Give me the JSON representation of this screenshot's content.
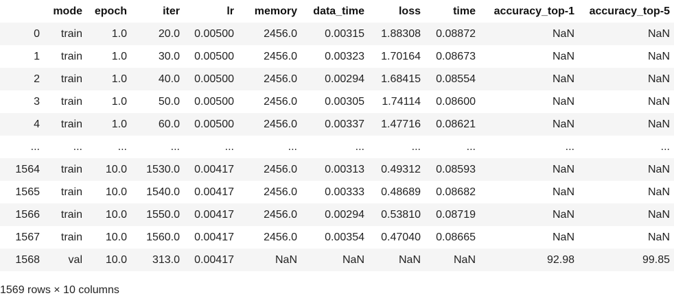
{
  "table": {
    "index_header": "",
    "columns": [
      "mode",
      "epoch",
      "iter",
      "lr",
      "memory",
      "data_time",
      "loss",
      "time",
      "accuracy_top-1",
      "accuracy_top-5"
    ],
    "rows": [
      {
        "index": "0",
        "cells": [
          "train",
          "1.0",
          "20.0",
          "0.00500",
          "2456.0",
          "0.00315",
          "1.88308",
          "0.08872",
          "NaN",
          "NaN"
        ]
      },
      {
        "index": "1",
        "cells": [
          "train",
          "1.0",
          "30.0",
          "0.00500",
          "2456.0",
          "0.00323",
          "1.70164",
          "0.08673",
          "NaN",
          "NaN"
        ]
      },
      {
        "index": "2",
        "cells": [
          "train",
          "1.0",
          "40.0",
          "0.00500",
          "2456.0",
          "0.00294",
          "1.68415",
          "0.08554",
          "NaN",
          "NaN"
        ]
      },
      {
        "index": "3",
        "cells": [
          "train",
          "1.0",
          "50.0",
          "0.00500",
          "2456.0",
          "0.00305",
          "1.74114",
          "0.08600",
          "NaN",
          "NaN"
        ]
      },
      {
        "index": "4",
        "cells": [
          "train",
          "1.0",
          "60.0",
          "0.00500",
          "2456.0",
          "0.00337",
          "1.47716",
          "0.08621",
          "NaN",
          "NaN"
        ]
      },
      {
        "index": "...",
        "cells": [
          "...",
          "...",
          "...",
          "...",
          "...",
          "...",
          "...",
          "...",
          "...",
          "..."
        ]
      },
      {
        "index": "1564",
        "cells": [
          "train",
          "10.0",
          "1530.0",
          "0.00417",
          "2456.0",
          "0.00313",
          "0.49312",
          "0.08593",
          "NaN",
          "NaN"
        ]
      },
      {
        "index": "1565",
        "cells": [
          "train",
          "10.0",
          "1540.0",
          "0.00417",
          "2456.0",
          "0.00333",
          "0.48689",
          "0.08682",
          "NaN",
          "NaN"
        ]
      },
      {
        "index": "1566",
        "cells": [
          "train",
          "10.0",
          "1550.0",
          "0.00417",
          "2456.0",
          "0.00294",
          "0.53810",
          "0.08719",
          "NaN",
          "NaN"
        ]
      },
      {
        "index": "1567",
        "cells": [
          "train",
          "10.0",
          "1560.0",
          "0.00417",
          "2456.0",
          "0.00354",
          "0.47040",
          "0.08665",
          "NaN",
          "NaN"
        ]
      },
      {
        "index": "1568",
        "cells": [
          "val",
          "10.0",
          "313.0",
          "0.00417",
          "NaN",
          "NaN",
          "NaN",
          "NaN",
          "92.98",
          "99.85"
        ]
      }
    ]
  },
  "caption": "1569 rows × 10 columns",
  "colors": {
    "stripe": "#f5f5f5",
    "text": "#222222",
    "background": "#ffffff"
  }
}
